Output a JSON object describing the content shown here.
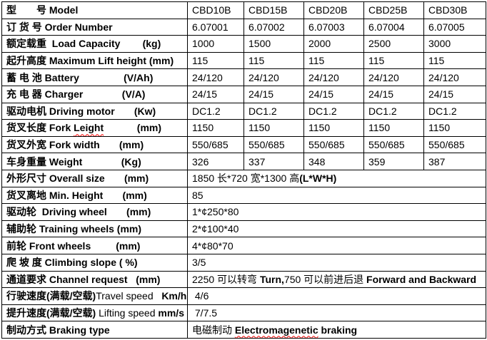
{
  "page": {
    "background_color": "#ffffff",
    "border_color": "#000000",
    "text_color": "#000000",
    "spellcheck_underline_color": "#ff0000"
  },
  "table": {
    "rows": [
      {
        "label": [
          {
            "t": "型　　号 Model",
            "b": true
          }
        ],
        "cells": [
          "CBD10B",
          "CBD15B",
          "CBD20B",
          "CBD25B",
          "CBD30B"
        ]
      },
      {
        "label": [
          {
            "t": "订 货 号 Order Number",
            "b": true
          }
        ],
        "cells": [
          "6.07001",
          "6.07002",
          "6.07003",
          "6.07004",
          "6.07005"
        ]
      },
      {
        "label": [
          {
            "t": "额定载重  Load Capacity        (kg)",
            "b": true
          }
        ],
        "cells": [
          "1000",
          "1500",
          "2000",
          "2500",
          "3000"
        ]
      },
      {
        "label": [
          {
            "t": "起升高度 Maximum Lift height (mm)",
            "b": true
          }
        ],
        "cells": [
          "115",
          "115",
          "115",
          "115",
          "115"
        ]
      },
      {
        "label": [
          {
            "t": "蓄 电 池 Battery                (V/Ah)",
            "b": true
          }
        ],
        "cells": [
          "24/120",
          "24/120",
          "24/120",
          "24/120",
          "24/120"
        ]
      },
      {
        "label": [
          {
            "t": "充 电 器 Charger              (V/A)",
            "b": true
          }
        ],
        "cells": [
          "24/15",
          "24/15",
          "24/15",
          "24/15",
          "24/15"
        ]
      },
      {
        "label": [
          {
            "t": "驱动电机 Driving motor       (Kw)",
            "b": true
          }
        ],
        "cells": [
          "DC1.2",
          "DC1.2",
          "DC1.2",
          "DC1.2",
          "DC1.2"
        ]
      },
      {
        "label": [
          {
            "t": "货叉长度 Fork ",
            "b": true
          },
          {
            "t": "Leight",
            "b": true,
            "wavy": true
          },
          {
            "t": "            (mm)",
            "b": true
          }
        ],
        "cells": [
          "1150",
          "1150",
          "1150",
          "1150",
          "1150"
        ]
      },
      {
        "label": [
          {
            "t": "货叉外宽 Fork width       (mm)",
            "b": true
          }
        ],
        "cells": [
          "550/685",
          "550/685",
          "550/685",
          "550/685",
          "550/685"
        ]
      },
      {
        "label": [
          {
            "t": "车身重量 Weight              (Kg)",
            "b": true
          }
        ],
        "cells": [
          "326",
          "337",
          "348",
          "359",
          "387"
        ]
      },
      {
        "label": [
          {
            "t": "外形尺寸 Overall size       (mm)",
            "b": true
          }
        ],
        "value": [
          {
            "t": "1850 长*720 宽*1300 高",
            "b": false
          },
          {
            "t": "(L*W*H)",
            "b": true
          }
        ]
      },
      {
        "label": [
          {
            "t": "货叉离地 Min. Height       (mm)",
            "b": true
          }
        ],
        "value": [
          {
            "t": "85",
            "b": false
          }
        ]
      },
      {
        "label": [
          {
            "t": "驱动轮  Driving wheel       (mm)",
            "b": true
          }
        ],
        "value": [
          {
            "t": "1*¢250*80",
            "b": false
          }
        ]
      },
      {
        "label": [
          {
            "t": "辅助轮 Training wheels (mm)",
            "b": true
          }
        ],
        "value": [
          {
            "t": "2*¢100*40",
            "b": false
          }
        ]
      },
      {
        "label": [
          {
            "t": "前轮 Front wheels         (mm)",
            "b": true
          }
        ],
        "value": [
          {
            "t": "4*¢80*70",
            "b": false
          }
        ]
      },
      {
        "label": [
          {
            "t": "爬 坡 度 Climbing slope ( %)",
            "b": true
          }
        ],
        "value": [
          {
            "t": "3/5",
            "b": false
          }
        ]
      },
      {
        "label": [
          {
            "t": "通道要求 Channel request   (mm)",
            "b": true
          }
        ],
        "value": [
          {
            "t": "2250 可以转弯 ",
            "b": false
          },
          {
            "t": "Turn,",
            "b": true
          },
          {
            "t": "750 可以前进后退 ",
            "b": false
          },
          {
            "t": "Forward and Backward",
            "b": true
          }
        ]
      },
      {
        "label": [
          {
            "t": "行驶速度(满载/空载)",
            "b": true
          },
          {
            "t": "Travel speed   ",
            "b": false
          },
          {
            "t": "Km/h",
            "b": true
          }
        ],
        "value": [
          {
            "t": " 4/6",
            "b": false
          }
        ]
      },
      {
        "label": [
          {
            "t": "提升速度(满载/空载) ",
            "b": true
          },
          {
            "t": "Lifting speed ",
            "b": false
          },
          {
            "t": "mm/s",
            "b": true
          }
        ],
        "value": [
          {
            "t": " 7/7.5",
            "b": false
          }
        ]
      },
      {
        "label": [
          {
            "t": "制动方式 Braking type",
            "b": true
          }
        ],
        "value": [
          {
            "t": "电磁制动 ",
            "b": false
          },
          {
            "t": "Electromagenetic",
            "b": true,
            "wavy": true
          },
          {
            "t": " braking",
            "b": true
          }
        ]
      }
    ]
  }
}
